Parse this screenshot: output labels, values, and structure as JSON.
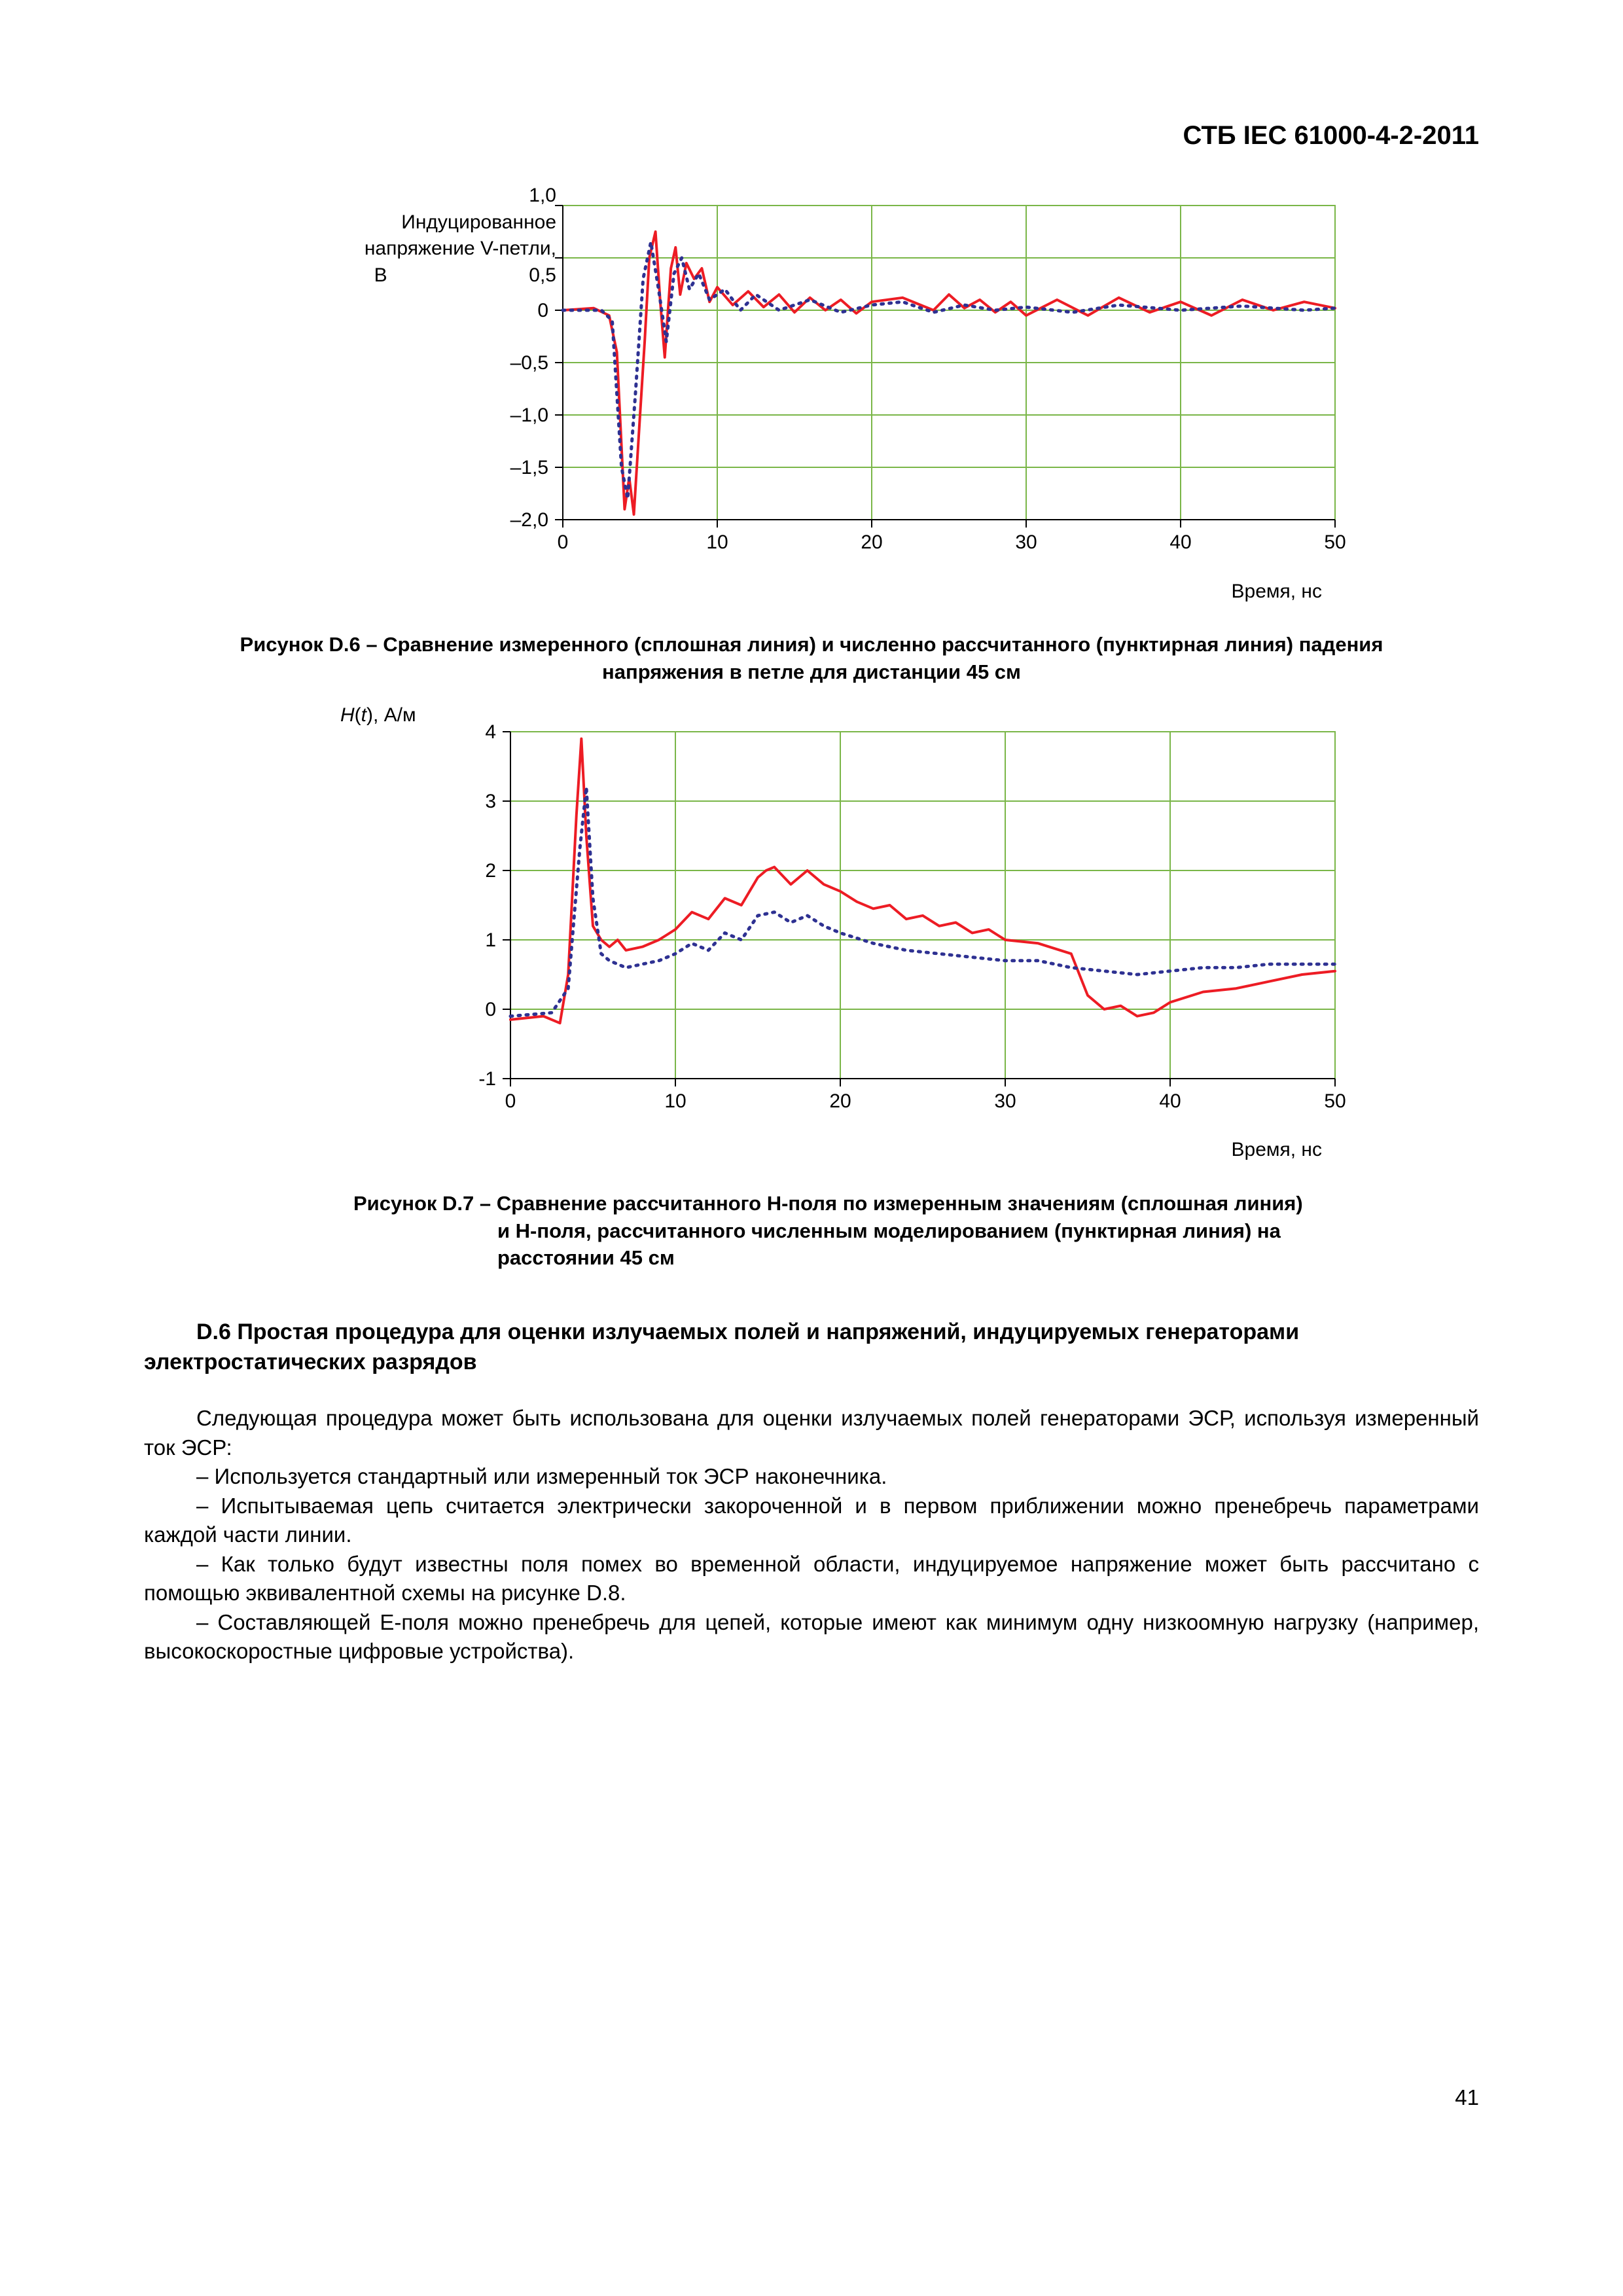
{
  "header": {
    "standard": "СТБ IEC 61000-4-2-2011"
  },
  "page_number": "41",
  "chart_d6": {
    "type": "line",
    "ylabel_line1": "Индуцированное",
    "ylabel_line2": "напряжение V-петли,",
    "ylabel_line3": "В",
    "ylabel_1_0": "1,0",
    "ylabel_0_5": "0,5",
    "xlabel": "Время, нс",
    "xlim": [
      0,
      50
    ],
    "ylim": [
      -2.0,
      1.0
    ],
    "xticks": [
      0,
      10,
      20,
      30,
      40,
      50
    ],
    "yticks": [
      -2.0,
      -1.5,
      -1.0,
      -0.5,
      0,
      0.5,
      1.0
    ],
    "ytick_labels": [
      "–2,0",
      "–1,5",
      "–1,0",
      "–0,5",
      "0",
      "0,5",
      "1,0"
    ],
    "grid_color": "#7ab648",
    "axis_color": "#000000",
    "background_color": "#ffffff",
    "series": [
      {
        "name": "measured",
        "style": "solid",
        "color": "#ed1c24",
        "line_width": 4,
        "data": [
          [
            0,
            0
          ],
          [
            2,
            0.02
          ],
          [
            3,
            -0.05
          ],
          [
            3.5,
            -0.4
          ],
          [
            4,
            -1.9
          ],
          [
            4.3,
            -1.6
          ],
          [
            4.6,
            -1.95
          ],
          [
            5,
            -1.0
          ],
          [
            5.3,
            -0.3
          ],
          [
            5.6,
            0.5
          ],
          [
            6,
            0.75
          ],
          [
            6.3,
            0.1
          ],
          [
            6.6,
            -0.45
          ],
          [
            7,
            0.4
          ],
          [
            7.3,
            0.6
          ],
          [
            7.6,
            0.15
          ],
          [
            8,
            0.45
          ],
          [
            8.5,
            0.3
          ],
          [
            9,
            0.4
          ],
          [
            9.5,
            0.08
          ],
          [
            10,
            0.22
          ],
          [
            11,
            0.05
          ],
          [
            12,
            0.18
          ],
          [
            13,
            0.03
          ],
          [
            14,
            0.15
          ],
          [
            15,
            -0.02
          ],
          [
            16,
            0.12
          ],
          [
            17,
            0.0
          ],
          [
            18,
            0.1
          ],
          [
            19,
            -0.03
          ],
          [
            20,
            0.08
          ],
          [
            22,
            0.12
          ],
          [
            24,
            0.0
          ],
          [
            25,
            0.15
          ],
          [
            26,
            0.02
          ],
          [
            27,
            0.1
          ],
          [
            28,
            -0.02
          ],
          [
            29,
            0.08
          ],
          [
            30,
            -0.05
          ],
          [
            32,
            0.1
          ],
          [
            34,
            -0.05
          ],
          [
            36,
            0.12
          ],
          [
            38,
            -0.02
          ],
          [
            40,
            0.08
          ],
          [
            42,
            -0.05
          ],
          [
            44,
            0.1
          ],
          [
            46,
            0.0
          ],
          [
            48,
            0.08
          ],
          [
            50,
            0.02
          ]
        ]
      },
      {
        "name": "calculated",
        "style": "dotted",
        "color": "#2e3192",
        "line_width": 5,
        "data": [
          [
            0,
            0
          ],
          [
            2.5,
            0
          ],
          [
            3.2,
            -0.1
          ],
          [
            3.8,
            -1.5
          ],
          [
            4.2,
            -1.8
          ],
          [
            4.7,
            -0.8
          ],
          [
            5.2,
            0.3
          ],
          [
            5.7,
            0.65
          ],
          [
            6.2,
            0.2
          ],
          [
            6.7,
            -0.3
          ],
          [
            7.2,
            0.35
          ],
          [
            7.7,
            0.5
          ],
          [
            8.2,
            0.2
          ],
          [
            8.8,
            0.35
          ],
          [
            9.5,
            0.1
          ],
          [
            10.5,
            0.2
          ],
          [
            11.5,
            0.0
          ],
          [
            12.5,
            0.15
          ],
          [
            14,
            0.0
          ],
          [
            16,
            0.1
          ],
          [
            18,
            -0.02
          ],
          [
            20,
            0.05
          ],
          [
            22,
            0.08
          ],
          [
            24,
            -0.02
          ],
          [
            26,
            0.05
          ],
          [
            28,
            0.0
          ],
          [
            30,
            0.03
          ],
          [
            33,
            -0.02
          ],
          [
            36,
            0.05
          ],
          [
            40,
            0.0
          ],
          [
            44,
            0.04
          ],
          [
            48,
            0.0
          ],
          [
            50,
            0.02
          ]
        ]
      }
    ]
  },
  "caption_d6": "Рисунок D.6 – Сравнение измеренного (сплошная линия) и численно рассчитанного (пунктирная линия) падения напряжения в петле для дистанции 45 см",
  "chart_d7": {
    "type": "line",
    "ylabel_html": "H(t), А/м",
    "xlabel": "Время, нс",
    "xlim": [
      0,
      50
    ],
    "ylim": [
      -1,
      4
    ],
    "xticks": [
      0,
      10,
      20,
      30,
      40,
      50
    ],
    "yticks": [
      -1,
      0,
      1,
      2,
      3,
      4
    ],
    "grid_color": "#7ab648",
    "axis_color": "#000000",
    "background_color": "#ffffff",
    "series": [
      {
        "name": "measured",
        "style": "solid",
        "color": "#ed1c24",
        "line_width": 4,
        "data": [
          [
            0,
            -0.15
          ],
          [
            2,
            -0.1
          ],
          [
            3,
            -0.2
          ],
          [
            3.5,
            0.5
          ],
          [
            4,
            2.8
          ],
          [
            4.3,
            3.9
          ],
          [
            4.6,
            2.5
          ],
          [
            5,
            1.2
          ],
          [
            5.5,
            1.0
          ],
          [
            6,
            0.9
          ],
          [
            6.5,
            1.0
          ],
          [
            7,
            0.85
          ],
          [
            8,
            0.9
          ],
          [
            9,
            1.0
          ],
          [
            10,
            1.15
          ],
          [
            11,
            1.4
          ],
          [
            12,
            1.3
          ],
          [
            13,
            1.6
          ],
          [
            14,
            1.5
          ],
          [
            15,
            1.9
          ],
          [
            15.5,
            2.0
          ],
          [
            16,
            2.05
          ],
          [
            17,
            1.8
          ],
          [
            18,
            2.0
          ],
          [
            19,
            1.8
          ],
          [
            20,
            1.7
          ],
          [
            21,
            1.55
          ],
          [
            22,
            1.45
          ],
          [
            23,
            1.5
          ],
          [
            24,
            1.3
          ],
          [
            25,
            1.35
          ],
          [
            26,
            1.2
          ],
          [
            27,
            1.25
          ],
          [
            28,
            1.1
          ],
          [
            29,
            1.15
          ],
          [
            30,
            1.0
          ],
          [
            32,
            0.95
          ],
          [
            34,
            0.8
          ],
          [
            35,
            0.2
          ],
          [
            36,
            0.0
          ],
          [
            37,
            0.05
          ],
          [
            38,
            -0.1
          ],
          [
            39,
            -0.05
          ],
          [
            40,
            0.1
          ],
          [
            42,
            0.25
          ],
          [
            44,
            0.3
          ],
          [
            46,
            0.4
          ],
          [
            48,
            0.5
          ],
          [
            50,
            0.55
          ]
        ]
      },
      {
        "name": "calculated",
        "style": "dotted",
        "color": "#2e3192",
        "line_width": 5,
        "data": [
          [
            0,
            -0.1
          ],
          [
            2.5,
            -0.05
          ],
          [
            3.5,
            0.3
          ],
          [
            4.2,
            2.3
          ],
          [
            4.6,
            3.2
          ],
          [
            5,
            1.6
          ],
          [
            5.5,
            0.8
          ],
          [
            6,
            0.7
          ],
          [
            7,
            0.6
          ],
          [
            8,
            0.65
          ],
          [
            9,
            0.7
          ],
          [
            10,
            0.8
          ],
          [
            11,
            0.95
          ],
          [
            12,
            0.85
          ],
          [
            13,
            1.1
          ],
          [
            14,
            1.0
          ],
          [
            15,
            1.35
          ],
          [
            16,
            1.4
          ],
          [
            17,
            1.25
          ],
          [
            18,
            1.35
          ],
          [
            19,
            1.2
          ],
          [
            20,
            1.1
          ],
          [
            22,
            0.95
          ],
          [
            24,
            0.85
          ],
          [
            26,
            0.8
          ],
          [
            28,
            0.75
          ],
          [
            30,
            0.7
          ],
          [
            32,
            0.7
          ],
          [
            34,
            0.6
          ],
          [
            36,
            0.55
          ],
          [
            38,
            0.5
          ],
          [
            40,
            0.55
          ],
          [
            42,
            0.6
          ],
          [
            44,
            0.6
          ],
          [
            46,
            0.65
          ],
          [
            48,
            0.65
          ],
          [
            49,
            0.65
          ],
          [
            50,
            0.65
          ]
        ]
      }
    ]
  },
  "caption_d7_l1": "Рисунок D.7 – Сравнение рассчитанного H-поля по измеренным значениям (сплошная линия)",
  "caption_d7_l2": "и H-поля, рассчитанного численным моделированием (пунктирная линия) на",
  "caption_d7_l3": "расстоянии 45 см",
  "section": {
    "title": "D.6 Простая процедура для оценки излучаемых полей и напряжений, индуцируемых генераторами электростатических разрядов",
    "para1": "Следующая процедура может быть использована для оценки излучаемых полей генераторами ЭСР, используя измеренный ток ЭСР:",
    "item1": "– Используется стандартный или измеренный ток ЭСР наконечника.",
    "item2": "– Испытываемая цепь считается электрически закороченной и в первом приближении можно пренебречь параметрами каждой части линии.",
    "item3": "– Как только будут известны поля помех во временной области, индуцируемое напряжение может быть рассчитано с помощью эквивалентной схемы на рисунке D.8.",
    "item4": "– Составляющей E-поля можно пренебречь для цепей, которые имеют как минимум одну низкоомную нагрузку (например, высокоскоростные цифровые устройства)."
  }
}
